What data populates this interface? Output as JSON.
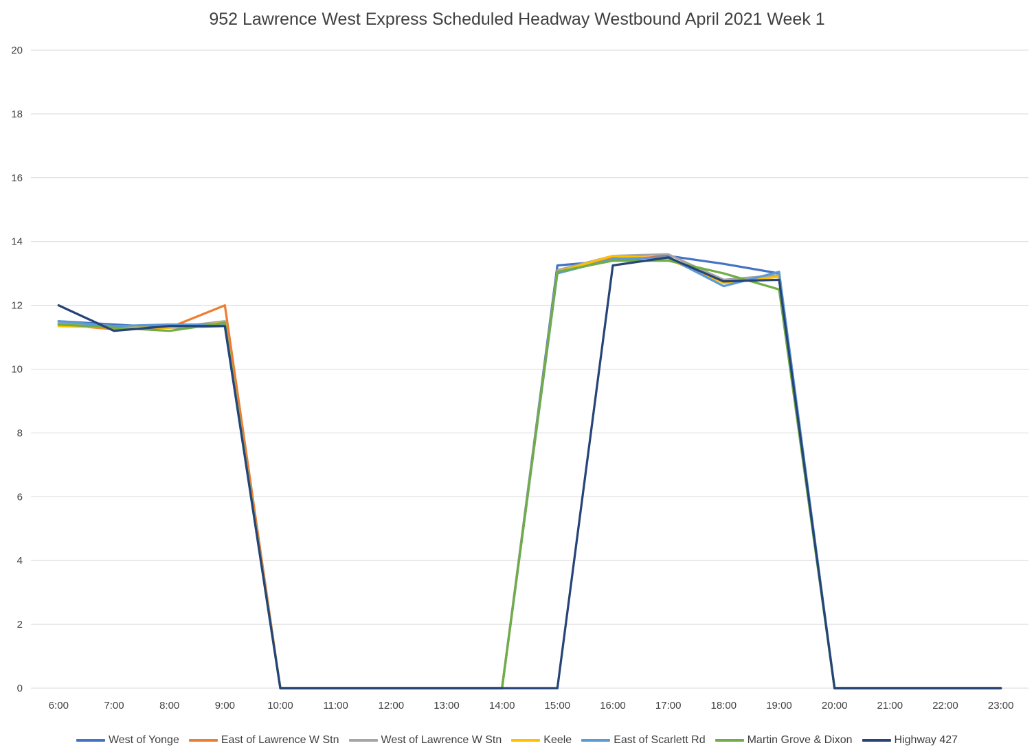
{
  "title": "952 Lawrence West Express  Scheduled Headway Westbound April 2021 Week 1",
  "chart_data": {
    "type": "line",
    "title": "952 Lawrence West Express  Scheduled Headway Westbound April 2021 Week 1",
    "xlabel": "",
    "ylabel": "",
    "ylim": [
      0,
      20
    ],
    "ytick_step": 2,
    "grid": true,
    "legend_position": "bottom",
    "gridline_color": "#D9D9D9",
    "tick_label_color": "#404040",
    "categories": [
      "6:00",
      "7:00",
      "8:00",
      "9:00",
      "10:00",
      "11:00",
      "12:00",
      "13:00",
      "14:00",
      "15:00",
      "16:00",
      "17:00",
      "18:00",
      "19:00",
      "20:00",
      "21:00",
      "22:00",
      "23:00"
    ],
    "series": [
      {
        "name": "West of Yonge",
        "color": "#4472C4",
        "values": [
          11.5,
          11.4,
          11.3,
          11.35,
          0,
          0,
          0,
          0,
          0,
          13.25,
          13.4,
          13.55,
          13.3,
          13.0,
          0,
          0,
          0,
          0
        ]
      },
      {
        "name": "East of Lawrence W Stn",
        "color": "#ED7D31",
        "values": [
          11.4,
          11.25,
          11.3,
          12.0,
          0,
          0,
          0,
          0,
          0,
          13.1,
          13.5,
          13.5,
          12.75,
          12.9,
          0,
          0,
          0,
          0
        ]
      },
      {
        "name": "West of Lawrence W Stn",
        "color": "#A5A5A5",
        "values": [
          11.45,
          11.3,
          11.3,
          11.5,
          0,
          0,
          0,
          0,
          0,
          13.1,
          13.55,
          13.6,
          12.8,
          12.95,
          0,
          0,
          0,
          0
        ]
      },
      {
        "name": "Keele",
        "color": "#FFC000",
        "values": [
          11.35,
          11.3,
          11.3,
          11.45,
          0,
          0,
          0,
          0,
          0,
          13.05,
          13.55,
          13.45,
          12.7,
          12.9,
          0,
          0,
          0,
          0
        ]
      },
      {
        "name": "East of Scarlett Rd",
        "color": "#5B9BD5",
        "values": [
          11.5,
          11.35,
          11.4,
          11.4,
          0,
          0,
          0,
          0,
          0,
          13.0,
          13.45,
          13.5,
          12.6,
          13.05,
          0,
          0,
          0,
          0
        ]
      },
      {
        "name": "Martin Grove & Dixon",
        "color": "#70AD47",
        "values": [
          11.4,
          11.3,
          11.2,
          11.45,
          0,
          0,
          0,
          0,
          0,
          13.05,
          13.4,
          13.4,
          13.0,
          12.5,
          0,
          0,
          0,
          0
        ]
      },
      {
        "name": "Highway 427",
        "color": "#264478",
        "values": [
          12.0,
          11.2,
          11.35,
          11.35,
          0,
          0,
          0,
          0,
          0,
          0,
          13.25,
          13.5,
          12.75,
          12.8,
          0,
          0,
          0,
          0
        ]
      }
    ]
  }
}
